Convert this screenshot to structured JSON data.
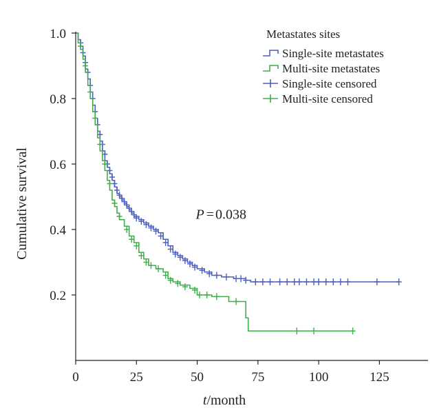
{
  "chart_data": {
    "type": "line",
    "subtype": "kaplan-meier survival curve",
    "title": "",
    "xlabel": {
      "var": "t",
      "sep": "/",
      "unit": "month"
    },
    "ylabel": "Cumulative survival",
    "xlim": [
      0,
      145
    ],
    "ylim": [
      0,
      1.0
    ],
    "xticks": [
      0,
      25,
      50,
      75,
      100,
      125
    ],
    "xtick_labels": [
      "0",
      "25",
      "50",
      "75",
      "100",
      "125"
    ],
    "yticks": [
      0.2,
      0.4,
      0.6,
      0.8,
      1.0
    ],
    "ytick_labels": [
      "0.2",
      "0.4",
      "0.6",
      "0.8",
      "1.0"
    ],
    "grid": false,
    "legend": {
      "position": "top-right",
      "title": "Metastates sites",
      "entries": [
        {
          "label": "Single-site metastates",
          "kind": "step",
          "color": "#4a5fc1"
        },
        {
          "label": "Multi-site metastates",
          "kind": "step",
          "color": "#3fae4a"
        },
        {
          "label": "Single-site censored",
          "kind": "censor",
          "color": "#4a5fc1"
        },
        {
          "label": "Multi-site censored",
          "kind": "censor",
          "color": "#3fae4a"
        }
      ]
    },
    "annotation": {
      "var": "P",
      "eq": "=",
      "value": "0.038",
      "x": 50,
      "y": 0.45
    },
    "series": [
      {
        "name": "Single-site metastates",
        "color": "#4a5fc1",
        "steps": [
          [
            0,
            1.0
          ],
          [
            1,
            0.98
          ],
          [
            2,
            0.96
          ],
          [
            3,
            0.93
          ],
          [
            4,
            0.89
          ],
          [
            5,
            0.86
          ],
          [
            6,
            0.82
          ],
          [
            7,
            0.78
          ],
          [
            8,
            0.74
          ],
          [
            9,
            0.7
          ],
          [
            10,
            0.67
          ],
          [
            11,
            0.64
          ],
          [
            12,
            0.61
          ],
          [
            13,
            0.59
          ],
          [
            14,
            0.57
          ],
          [
            15,
            0.55
          ],
          [
            16,
            0.53
          ],
          [
            17,
            0.51
          ],
          [
            18,
            0.5
          ],
          [
            19,
            0.49
          ],
          [
            20,
            0.48
          ],
          [
            21,
            0.47
          ],
          [
            22,
            0.46
          ],
          [
            23,
            0.45
          ],
          [
            24,
            0.44
          ],
          [
            26,
            0.43
          ],
          [
            28,
            0.42
          ],
          [
            30,
            0.41
          ],
          [
            32,
            0.4
          ],
          [
            34,
            0.39
          ],
          [
            36,
            0.37
          ],
          [
            38,
            0.35
          ],
          [
            40,
            0.33
          ],
          [
            42,
            0.32
          ],
          [
            44,
            0.31
          ],
          [
            46,
            0.3
          ],
          [
            48,
            0.29
          ],
          [
            50,
            0.28
          ],
          [
            53,
            0.27
          ],
          [
            56,
            0.26
          ],
          [
            60,
            0.255
          ],
          [
            65,
            0.25
          ],
          [
            70,
            0.245
          ],
          [
            72,
            0.24
          ],
          [
            133,
            0.24
          ]
        ],
        "censored": [
          [
            2,
            0.97
          ],
          [
            3,
            0.94
          ],
          [
            4,
            0.91
          ],
          [
            5,
            0.88
          ],
          [
            6,
            0.84
          ],
          [
            7,
            0.8
          ],
          [
            8,
            0.76
          ],
          [
            9,
            0.72
          ],
          [
            10,
            0.69
          ],
          [
            11,
            0.66
          ],
          [
            12,
            0.63
          ],
          [
            13,
            0.6
          ],
          [
            14,
            0.58
          ],
          [
            15,
            0.56
          ],
          [
            16,
            0.54
          ],
          [
            17,
            0.52
          ],
          [
            18,
            0.505
          ],
          [
            19,
            0.495
          ],
          [
            20,
            0.485
          ],
          [
            21,
            0.475
          ],
          [
            22,
            0.465
          ],
          [
            23,
            0.455
          ],
          [
            24,
            0.445
          ],
          [
            25,
            0.435
          ],
          [
            27,
            0.425
          ],
          [
            29,
            0.415
          ],
          [
            31,
            0.405
          ],
          [
            33,
            0.395
          ],
          [
            35,
            0.38
          ],
          [
            37,
            0.36
          ],
          [
            39,
            0.34
          ],
          [
            41,
            0.325
          ],
          [
            43,
            0.315
          ],
          [
            45,
            0.305
          ],
          [
            47,
            0.295
          ],
          [
            49,
            0.285
          ],
          [
            52,
            0.275
          ],
          [
            55,
            0.265
          ],
          [
            58,
            0.26
          ],
          [
            62,
            0.255
          ],
          [
            66,
            0.25
          ],
          [
            68,
            0.25
          ],
          [
            70,
            0.245
          ],
          [
            74,
            0.24
          ],
          [
            77,
            0.24
          ],
          [
            80,
            0.24
          ],
          [
            84,
            0.24
          ],
          [
            87,
            0.24
          ],
          [
            90,
            0.24
          ],
          [
            92,
            0.24
          ],
          [
            95,
            0.24
          ],
          [
            98,
            0.24
          ],
          [
            100,
            0.24
          ],
          [
            103,
            0.24
          ],
          [
            106,
            0.24
          ],
          [
            109,
            0.24
          ],
          [
            112,
            0.24
          ],
          [
            124,
            0.24
          ],
          [
            133,
            0.24
          ]
        ]
      },
      {
        "name": "Multi-site metastates",
        "color": "#3fae4a",
        "steps": [
          [
            0,
            1.0
          ],
          [
            1,
            0.97
          ],
          [
            2,
            0.95
          ],
          [
            3,
            0.92
          ],
          [
            4,
            0.88
          ],
          [
            5,
            0.84
          ],
          [
            6,
            0.8
          ],
          [
            7,
            0.76
          ],
          [
            8,
            0.72
          ],
          [
            9,
            0.68
          ],
          [
            10,
            0.64
          ],
          [
            11,
            0.61
          ],
          [
            12,
            0.58
          ],
          [
            13,
            0.55
          ],
          [
            14,
            0.52
          ],
          [
            15,
            0.49
          ],
          [
            16,
            0.47
          ],
          [
            17,
            0.45
          ],
          [
            18,
            0.43
          ],
          [
            20,
            0.41
          ],
          [
            22,
            0.38
          ],
          [
            24,
            0.36
          ],
          [
            26,
            0.33
          ],
          [
            28,
            0.31
          ],
          [
            30,
            0.29
          ],
          [
            33,
            0.28
          ],
          [
            36,
            0.27
          ],
          [
            38,
            0.25
          ],
          [
            40,
            0.24
          ],
          [
            43,
            0.23
          ],
          [
            47,
            0.22
          ],
          [
            50,
            0.2
          ],
          [
            56,
            0.195
          ],
          [
            63,
            0.18
          ],
          [
            69,
            0.18
          ],
          [
            70,
            0.13
          ],
          [
            71,
            0.09
          ],
          [
            115,
            0.09
          ]
        ],
        "censored": [
          [
            2,
            0.96
          ],
          [
            4,
            0.9
          ],
          [
            6,
            0.82
          ],
          [
            8,
            0.74
          ],
          [
            10,
            0.66
          ],
          [
            12,
            0.6
          ],
          [
            14,
            0.54
          ],
          [
            16,
            0.48
          ],
          [
            18,
            0.44
          ],
          [
            21,
            0.4
          ],
          [
            23,
            0.37
          ],
          [
            25,
            0.35
          ],
          [
            27,
            0.32
          ],
          [
            29,
            0.3
          ],
          [
            31,
            0.29
          ],
          [
            34,
            0.28
          ],
          [
            37,
            0.26
          ],
          [
            39,
            0.245
          ],
          [
            42,
            0.235
          ],
          [
            45,
            0.225
          ],
          [
            49,
            0.215
          ],
          [
            51,
            0.2
          ],
          [
            54,
            0.2
          ],
          [
            58,
            0.195
          ],
          [
            66,
            0.18
          ],
          [
            91,
            0.09
          ],
          [
            98,
            0.09
          ],
          [
            114,
            0.09
          ]
        ]
      }
    ]
  }
}
